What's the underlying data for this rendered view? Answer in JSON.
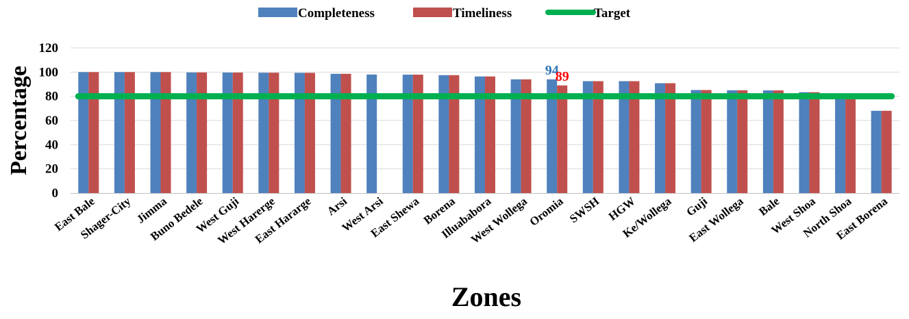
{
  "chart_data": {
    "type": "bar",
    "title": "",
    "xlabel": "Zones",
    "ylabel": "Percentage",
    "ylim": [
      0,
      120
    ],
    "yticks": [
      0,
      20,
      40,
      60,
      80,
      100,
      120
    ],
    "grid": true,
    "legend_position": "top",
    "categories": [
      "East Bale",
      "Shager-City",
      "Jimma",
      "Buno Bedele",
      "West Guji",
      "West Harerge",
      "East Hararge",
      "Arsi",
      "West Arsi",
      "East Shewa",
      "Borena",
      "Illuababora",
      "West Wollega",
      "Oromia",
      "SWSH",
      "HGW",
      "Ke/Wollega",
      "Guji",
      "East Wollega",
      "Bale",
      "West Shoa",
      "North Shoa",
      "East Borena"
    ],
    "series": [
      {
        "name": "Completeness",
        "color": "#4F81BD",
        "values": [
          100,
          100,
          100,
          99.7,
          99.6,
          99.5,
          99.4,
          98.6,
          98,
          97.9,
          97.5,
          96.4,
          94,
          94,
          92.5,
          92.5,
          90.8,
          85.2,
          85,
          84.9,
          83.4,
          81.5,
          68
        ]
      },
      {
        "name": "Timeliness",
        "color": "#C0504D",
        "values": [
          100,
          100,
          100,
          99.7,
          99.6,
          99.5,
          99.4,
          98.6,
          0,
          97.9,
          97.5,
          96.4,
          94,
          89,
          92.5,
          92.5,
          90.8,
          85.2,
          85,
          84.9,
          83.4,
          81.5,
          68
        ]
      },
      {
        "name": "Target",
        "color": "#00B050",
        "type": "line",
        "values": [
          80,
          80,
          80,
          80,
          80,
          80,
          80,
          80,
          80,
          80,
          80,
          80,
          80,
          80,
          80,
          80,
          80,
          80,
          80,
          80,
          80,
          80,
          80
        ]
      }
    ],
    "annotations": [
      {
        "category": "Oromia",
        "series": "Completeness",
        "text": "94",
        "color": "#2E75B6"
      },
      {
        "category": "Oromia",
        "series": "Timeliness",
        "text": "89",
        "color": "#FF0000"
      }
    ]
  }
}
